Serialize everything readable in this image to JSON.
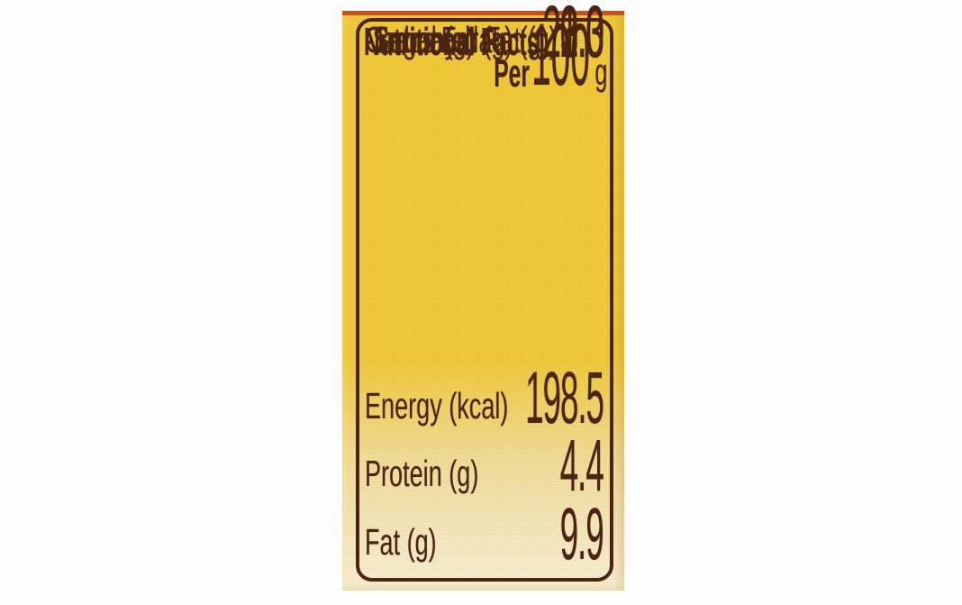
{
  "colors": {
    "page_bg": "#fcfcfc",
    "package_yellow": "#eec735",
    "package_mid": "#f0d98f",
    "package_cream": "#f5ebca",
    "stripe_orange": "#c4511f",
    "ink_brown": "#4a2513"
  },
  "label": {
    "title": "Nutritional Facts",
    "per_label": "Per",
    "per_quantity": "100",
    "per_unit": "g",
    "rows": [
      {
        "name": "Energy (kcal)",
        "value": "198.5"
      },
      {
        "name": "Protein (g)",
        "value": "4.4"
      },
      {
        "name": "Fat (g)",
        "value": "9.9"
      },
      {
        "name": "-Trans Fat (g)",
        "value": "0.0"
      },
      {
        "name": "-Saturated Fat (g)",
        "value": "2.3"
      },
      {
        "name": "Carbohydrate (g)",
        "value": "23.0"
      },
      {
        "name": "-Sugar (g)",
        "value": "21.3"
      }
    ]
  }
}
